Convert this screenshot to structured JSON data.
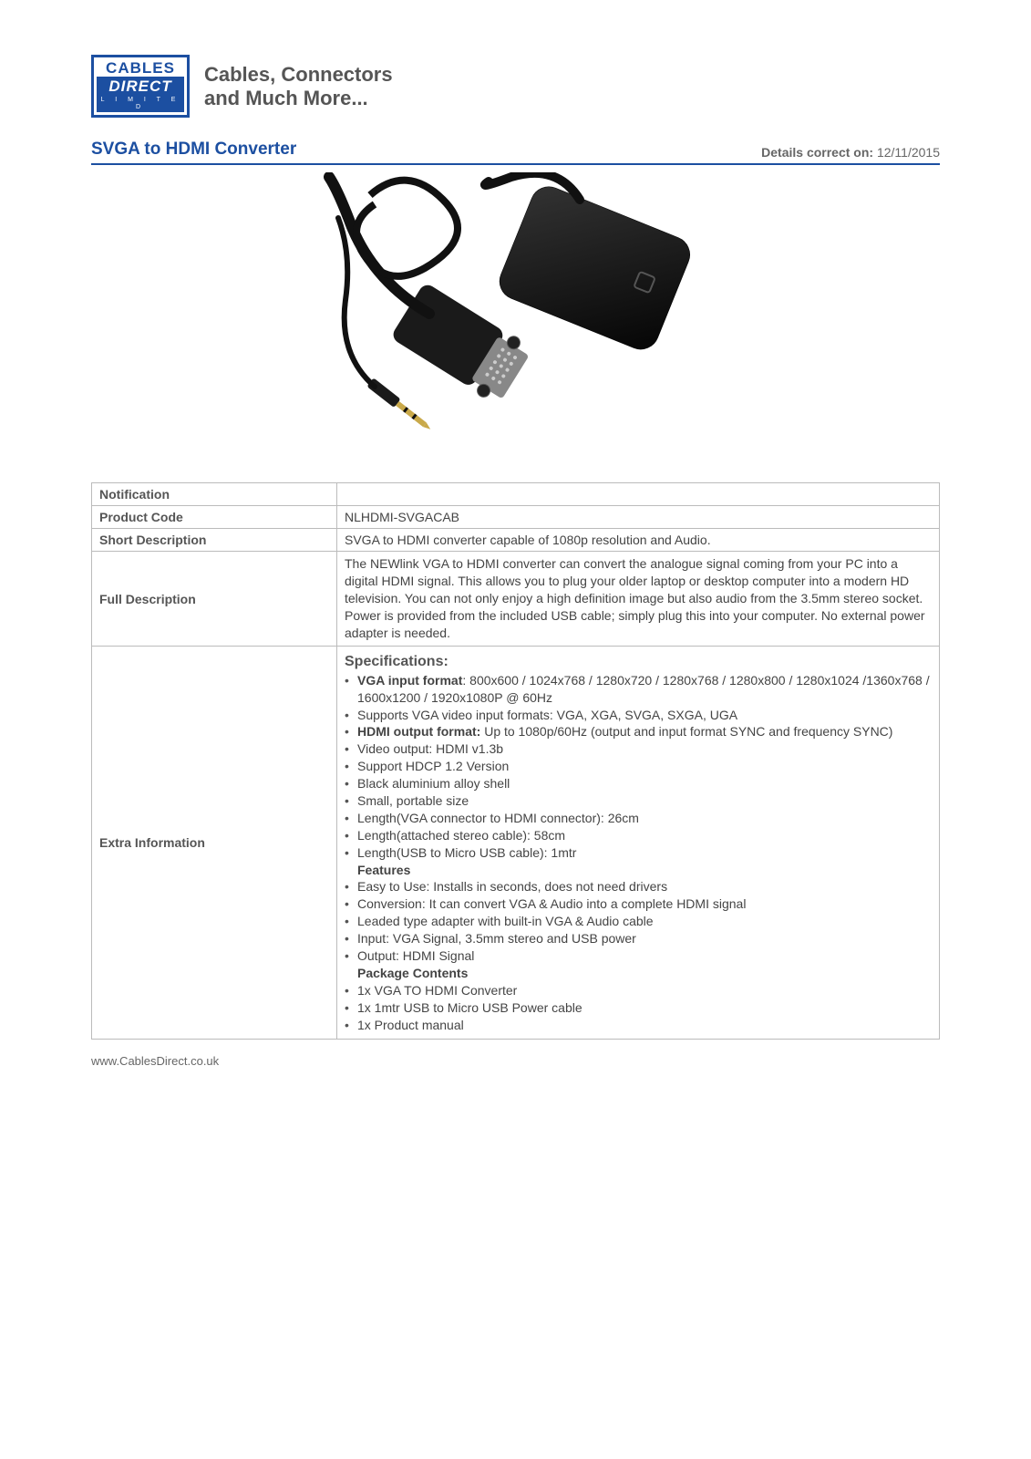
{
  "logo": {
    "line1": "CABLES",
    "line2": "DIRECT",
    "line3": "L I M I T E D"
  },
  "tagline": {
    "line1": "Cables, Connectors",
    "line2": "and Much More..."
  },
  "page_title": "SVGA to HDMI Converter",
  "date_label": "Details correct on:",
  "date_value": "12/11/2015",
  "colors": {
    "brand_blue": "#1c4fa1",
    "text_body": "#555555",
    "border_gray": "#bbbbbb"
  },
  "table": {
    "rows": {
      "notification": {
        "label": "Notification",
        "value": ""
      },
      "product_code": {
        "label": "Product Code",
        "value": "NLHDMI-SVGACAB"
      },
      "short_desc": {
        "label": "Short Description",
        "value": "SVGA to HDMI converter capable of 1080p resolution and Audio."
      },
      "full_desc": {
        "label": "Full Description",
        "value": "The NEWlink VGA to HDMI converter can convert the analogue signal coming from your PC into a digital HDMI signal. This allows you to plug your older laptop or desktop computer into a modern HD television. You can not only enjoy a high definition image but also audio from the 3.5mm stereo socket. Power is provided from the included USB cable; simply plug this into your computer. No external power adapter is needed."
      },
      "extra": {
        "label": "Extra Information"
      }
    }
  },
  "extra": {
    "heading": "Specifications:",
    "spec_items": [
      {
        "prefix_bold": "VGA input format",
        "rest": ": 800x600 / 1024x768 / 1280x720 / 1280x768 / 1280x800 / 1280x1024 /1360x768 / 1600x1200 / 1920x1080P @ 60Hz"
      },
      {
        "text": "Supports VGA video input formats: VGA, XGA, SVGA, SXGA, UGA"
      },
      {
        "prefix_bold": "HDMI output format:",
        "rest": " Up to 1080p/60Hz (output and input format SYNC and frequency SYNC)"
      },
      {
        "text": "Video output: HDMI v1.3b"
      },
      {
        "text": "Support HDCP 1.2 Version"
      },
      {
        "text": "Black aluminium alloy shell"
      },
      {
        "text": "Small, portable size"
      },
      {
        "text": "Length(VGA connector to HDMI connector): 26cm"
      },
      {
        "text": "Length(attached stereo cable): 58cm"
      },
      {
        "text": "Length(USB to Micro USB cable): 1mtr"
      }
    ],
    "features_heading": "Features",
    "features_items": [
      "Easy to Use: Installs in seconds, does not need drivers",
      "Conversion: It can convert VGA & Audio into a complete HDMI signal",
      "Leaded type adapter with built-in VGA & Audio cable",
      "Input: VGA Signal, 3.5mm stereo and USB power",
      "Output: HDMI Signal"
    ],
    "package_heading": "Package Contents",
    "package_items": [
      "1x VGA TO HDMI Converter",
      "1x 1mtr USB to Micro USB Power cable",
      "1x Product manual"
    ]
  },
  "footer_url": "www.CablesDirect.co.uk"
}
